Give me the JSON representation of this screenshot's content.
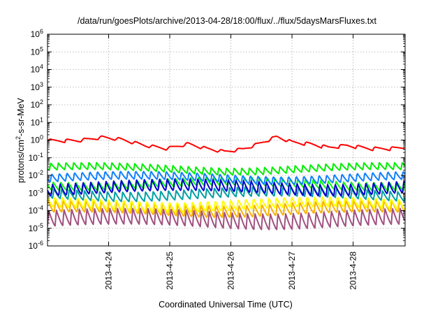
{
  "chart_data": {
    "type": "line",
    "title": "/data/run/goesPlots/archive/2013-04-28/18:00/flux/../flux/5daysMarsFluxes.txt",
    "xlabel": "Coordinated Universal Time (UTC)",
    "ylabel_base": "protons/cm",
    "ylabel_sup": "2",
    "ylabel_tail": "-s-sr-MeV",
    "yscale": "log",
    "ylim_exp": [
      -6,
      6
    ],
    "y_tick_exponents": [
      -6,
      -5,
      -4,
      -3,
      -2,
      -1,
      0,
      1,
      2,
      3,
      4,
      5,
      6
    ],
    "y_tick_base": "10",
    "xlim_days": [
      0,
      5.85
    ],
    "x_ticks": [
      {
        "day": 1,
        "label": "2013-4-24"
      },
      {
        "day": 2,
        "label": "2013-4-25"
      },
      {
        "day": 3,
        "label": "2013-4-26"
      },
      {
        "day": 4,
        "label": "2013-4-27"
      },
      {
        "day": 5,
        "label": "2013-4-28"
      }
    ],
    "grid": true,
    "series": [
      {
        "color": "#a05080",
        "base": 1.3e-05,
        "amp": 8
      },
      {
        "color": "#f8b000",
        "base": 6e-05,
        "amp": 5
      },
      {
        "color": "#ffff00",
        "base": 0.00012,
        "amp": 4
      },
      {
        "color": "#00a0a0",
        "base": 0.0005,
        "amp": 3.5
      },
      {
        "color": "#00ff00",
        "base": 0.002,
        "amp": 3
      },
      {
        "color": "#0000cc",
        "base": 0.001,
        "amp": 5
      },
      {
        "color": "#1080ff",
        "base": 0.0045,
        "amp": 3
      },
      {
        "color": "#00ee00",
        "base": 0.016,
        "amp": 2.5
      },
      {
        "color": "#ff0000",
        "base": 0.3,
        "amp": 1.5
      }
    ],
    "red_envelope": [
      [
        0,
        0.85
      ],
      [
        0.5,
        0.85
      ],
      [
        0.9,
        1.3
      ],
      [
        1.2,
        1.0
      ],
      [
        1.6,
        0.45
      ],
      [
        1.95,
        0.3
      ],
      [
        2.3,
        0.55
      ],
      [
        2.6,
        0.3
      ],
      [
        2.9,
        0.2
      ],
      [
        3.2,
        0.28
      ],
      [
        3.45,
        0.55
      ],
      [
        3.75,
        1.4
      ],
      [
        4.0,
        0.7
      ],
      [
        4.3,
        0.55
      ],
      [
        4.6,
        0.35
      ],
      [
        4.9,
        0.45
      ],
      [
        5.3,
        0.3
      ],
      [
        5.6,
        0.3
      ],
      [
        5.85,
        0.35
      ]
    ]
  }
}
